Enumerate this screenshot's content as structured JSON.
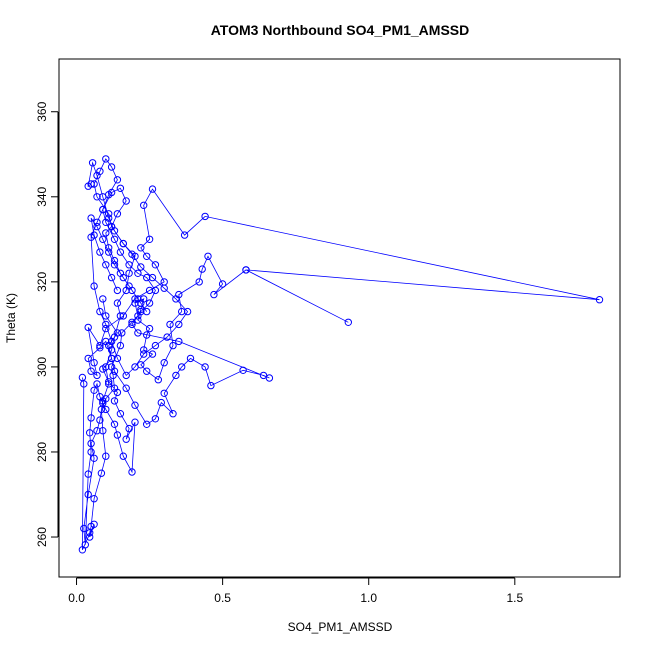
{
  "chart_data": {
    "type": "line",
    "title": "ATOM3 Northbound SO4_PM1_AMSSD",
    "xlabel": "SO4_PM1_AMSSD",
    "ylabel": "Theta (K)",
    "xlim": [
      -0.06,
      1.86
    ],
    "ylim": [
      250.6,
      372.4
    ],
    "xticks": [
      0.0,
      0.5,
      1.0,
      1.5
    ],
    "xtick_labels": [
      "0.0",
      "0.5",
      "1.0",
      "1.5"
    ],
    "yticks": [
      260,
      280,
      300,
      320,
      340,
      360
    ],
    "ytick_labels": [
      "260",
      "280",
      "300",
      "320",
      "340",
      "360"
    ],
    "grid": false,
    "legend": "none",
    "marker": "open-circle",
    "line_color": "#0000ff",
    "series": [
      {
        "x": [
          0.02,
          0.025,
          0.02,
          0.06,
          0.045,
          0.045,
          0.05,
          0.06,
          0.085,
          0.1,
          0.09,
          0.085,
          0.1,
          0.13,
          0.125,
          0.12,
          0.15,
          0.155,
          0.19,
          0.21,
          0.2,
          0.23,
          0.22,
          0.21,
          0.25,
          0.24,
          0.23,
          0.26,
          0.22,
          0.24,
          0.28,
          0.3,
          0.33,
          0.32,
          0.36,
          0.35,
          0.42,
          0.43,
          0.45,
          0.5,
          0.47,
          0.58,
          0.93,
          0.58,
          1.79,
          0.44,
          0.37,
          0.26,
          0.23,
          0.25,
          0.22,
          0.24,
          0.27,
          0.3,
          0.25,
          0.2,
          0.16,
          0.1,
          0.08,
          0.04,
          0.06,
          0.07,
          0.05,
          0.04,
          0.08,
          0.1,
          0.12,
          0.09,
          0.11,
          0.14,
          0.13,
          0.15,
          0.18,
          0.17,
          0.2,
          0.19,
          0.16,
          0.14,
          0.13,
          0.1,
          0.09,
          0.08,
          0.07,
          0.06,
          0.05,
          0.045,
          0.05,
          0.04,
          0.03,
          0.025,
          0.04,
          0.06,
          0.05,
          0.07,
          0.08,
          0.09,
          0.11,
          0.1,
          0.12,
          0.13,
          0.15,
          0.14,
          0.17,
          0.18,
          0.2,
          0.16,
          0.12,
          0.11,
          0.07,
          0.06,
          0.08,
          0.1,
          0.12,
          0.14,
          0.11,
          0.09,
          0.1,
          0.13,
          0.15,
          0.18,
          0.21,
          0.24,
          0.27,
          0.25,
          0.22,
          0.19,
          0.21,
          0.35,
          0.66,
          0.64,
          0.57,
          0.46,
          0.44,
          0.39,
          0.36,
          0.34,
          0.3,
          0.33,
          0.29,
          0.27,
          0.24,
          0.2,
          0.17,
          0.13,
          0.12,
          0.11,
          0.14,
          0.1,
          0.09
        ],
        "y": [
          297.5,
          296.0,
          257.0,
          263.0,
          260.0,
          261.0,
          262.5,
          269.0,
          275.0,
          279.0,
          285.0,
          290.0,
          292.5,
          295.0,
          298.0,
          300.0,
          305.0,
          308.0,
          310.5,
          312.0,
          315.0,
          316.0,
          313.5,
          311.0,
          309.0,
          307.5,
          304.0,
          303.0,
          300.5,
          299.0,
          297.0,
          301.0,
          305.0,
          310.0,
          313.0,
          317.0,
          320.0,
          323.0,
          326.0,
          319.5,
          317.0,
          322.8,
          310.5,
          322.8,
          315.8,
          335.4,
          331.0,
          341.8,
          338.0,
          330.0,
          328.0,
          326.0,
          324.0,
          320.0,
          318.0,
          316.0,
          312.0,
          309.0,
          305.0,
          309.3,
          301.0,
          298.0,
          299.0,
          302.0,
          304.5,
          306.0,
          302.0,
          299.5,
          296.5,
          294.0,
          292.0,
          289.0,
          285.5,
          283.0,
          287.0,
          275.3,
          279.0,
          284.0,
          286.5,
          290.0,
          291.5,
          293.0,
          296.0,
          294.5,
          288.0,
          284.5,
          280.0,
          274.8,
          258.2,
          262.0,
          270.0,
          278.5,
          282.0,
          285.0,
          287.5,
          292.0,
          296.0,
          300.0,
          304.0,
          307.0,
          312.0,
          315.0,
          318.0,
          322.0,
          326.0,
          329.0,
          333.0,
          336.0,
          340.0,
          343.0,
          346.0,
          348.9,
          347.0,
          344.0,
          340.5,
          337.0,
          334.0,
          330.0,
          327.0,
          324.0,
          322.0,
          321.0,
          318.0,
          315.0,
          313.0,
          310.0,
          308.0,
          306.0,
          297.4,
          298.0,
          299.2,
          295.6,
          300.0,
          302.0,
          300.0,
          298.0,
          293.8,
          289.0,
          291.6,
          287.8,
          286.5,
          291.0,
          295.0,
          299.0,
          302.0,
          305.0,
          308.0,
          312.0,
          316.0
        ]
      },
      {
        "x": [
          0.05,
          0.04,
          0.055,
          0.07,
          0.09,
          0.11,
          0.13,
          0.16,
          0.19,
          0.22,
          0.26,
          0.3,
          0.34,
          0.38,
          0.35,
          0.31,
          0.27,
          0.23,
          0.2,
          0.17,
          0.14,
          0.12,
          0.1,
          0.08,
          0.06,
          0.05,
          0.07,
          0.09,
          0.12,
          0.15,
          0.17,
          0.14,
          0.12,
          0.1,
          0.11,
          0.13,
          0.15,
          0.18,
          0.21,
          0.24,
          0.22,
          0.19,
          0.16,
          0.13,
          0.11,
          0.09,
          0.07,
          0.05,
          0.06,
          0.08,
          0.1,
          0.12,
          0.14
        ],
        "y": [
          343.0,
          342.5,
          348.0,
          345.0,
          340.0,
          335.0,
          332.0,
          329.0,
          326.5,
          323.5,
          321.0,
          318.5,
          316.0,
          313.0,
          310.0,
          307.0,
          305.0,
          303.0,
          300.0,
          298.0,
          302.0,
          306.0,
          310.0,
          313.0,
          319.0,
          330.5,
          334.0,
          337.0,
          341.0,
          342.0,
          339.0,
          336.0,
          333.0,
          331.5,
          328.0,
          325.0,
          322.0,
          319.0,
          316.0,
          313.0,
          315.0,
          318.0,
          321.0,
          324.0,
          327.0,
          330.0,
          333.0,
          335.0,
          331.0,
          327.0,
          324.0,
          321.0,
          318.0
        ]
      }
    ]
  }
}
